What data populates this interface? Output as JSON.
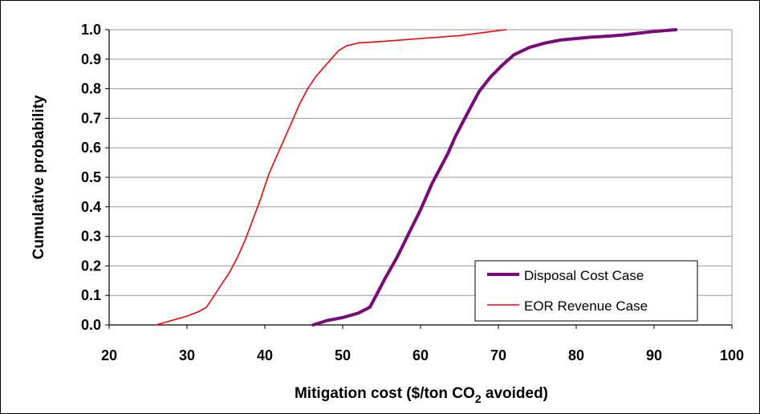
{
  "chart_data": {
    "type": "line",
    "title": "",
    "xlabel": "Mitigation cost ($/ton CO",
    "xlabel_sub": "2",
    "xlabel_tail": " avoided)",
    "ylabel": "Cumulative probability",
    "xlim": [
      20,
      100
    ],
    "ylim": [
      0.0,
      1.0
    ],
    "x_ticks": [
      "20",
      "30",
      "40",
      "50",
      "60",
      "70",
      "80",
      "90",
      "100"
    ],
    "y_ticks": [
      "0.0",
      "0.1",
      "0.2",
      "0.3",
      "0.4",
      "0.5",
      "0.6",
      "0.7",
      "0.8",
      "0.9",
      "1.0"
    ],
    "grid": "horizontal",
    "legend_position": "bottom-right",
    "series": [
      {
        "name": "Disposal Cost Case",
        "color": "#7a0a7a",
        "x": [
          46.2,
          48,
          50,
          52,
          53.5,
          54.5,
          55.5,
          57,
          58.5,
          60,
          61.5,
          62.5,
          63.5,
          64.5,
          65.5,
          66.5,
          67.5,
          69,
          70.5,
          72,
          74,
          76,
          78,
          80,
          82,
          84,
          86,
          88,
          90,
          92.8
        ],
        "y": [
          0.0,
          0.015,
          0.025,
          0.04,
          0.06,
          0.11,
          0.16,
          0.23,
          0.31,
          0.39,
          0.48,
          0.53,
          0.58,
          0.64,
          0.69,
          0.74,
          0.79,
          0.84,
          0.88,
          0.915,
          0.94,
          0.955,
          0.965,
          0.97,
          0.975,
          0.978,
          0.982,
          0.988,
          0.994,
          1.0
        ]
      },
      {
        "name": "EOR Revenue Case",
        "color": "#ff0000",
        "x": [
          26,
          28,
          30,
          31.5,
          32.5,
          33.5,
          34.5,
          35.5,
          36.5,
          37.5,
          38.5,
          39.5,
          40.5,
          41.5,
          42.5,
          43.5,
          44.5,
          45.5,
          46.5,
          47.5,
          48.5,
          49.5,
          50.5,
          52,
          55,
          60,
          65,
          68,
          71
        ],
        "y": [
          0.0,
          0.015,
          0.03,
          0.045,
          0.06,
          0.1,
          0.14,
          0.18,
          0.23,
          0.29,
          0.36,
          0.43,
          0.51,
          0.57,
          0.63,
          0.69,
          0.75,
          0.8,
          0.84,
          0.87,
          0.9,
          0.93,
          0.945,
          0.955,
          0.96,
          0.97,
          0.98,
          0.99,
          1.0
        ]
      }
    ]
  }
}
